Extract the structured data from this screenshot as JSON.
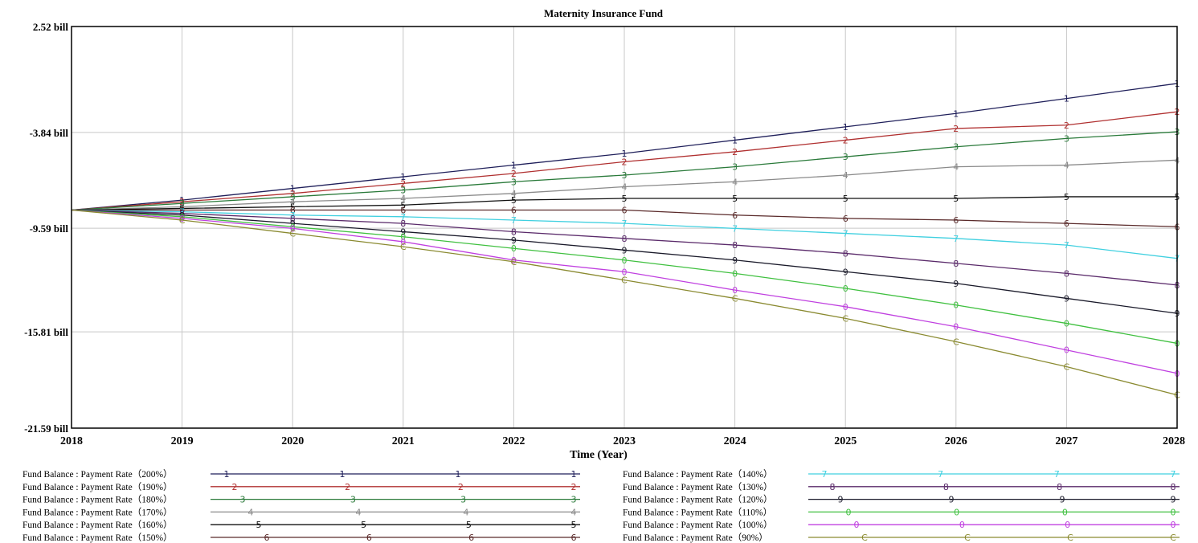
{
  "chart_data": {
    "type": "line",
    "title": "Maternity Insurance Fund",
    "xlabel": "Time (Year)",
    "ylabel": "",
    "x": [
      2018,
      2019,
      2020,
      2021,
      2022,
      2023,
      2024,
      2025,
      2026,
      2027,
      2028
    ],
    "x_tick_labels": [
      "2018",
      "2019",
      "2020",
      "2021",
      "2022",
      "2023",
      "2024",
      "2025",
      "2026",
      "2027",
      "2028"
    ],
    "ylim": [
      -21.59,
      2.52
    ],
    "y_unit": "bill",
    "y_tick_labels": [
      "2.52 bill",
      "-3.84 bill",
      "-9.59 bill",
      "-15.81 bill",
      "-21.59 bill"
    ],
    "y_tick_values": [
      2.52,
      -3.84,
      -9.59,
      -15.81,
      -21.59
    ],
    "grid": true,
    "legend_position": "bottom",
    "series": [
      {
        "name": "Fund Balance : Payment Rate（200%）",
        "marker": "1",
        "color": "#1f1f5a",
        "values": [
          -8.5,
          -7.9,
          -7.2,
          -6.5,
          -5.8,
          -5.1,
          -4.3,
          -3.5,
          -2.7,
          -1.8,
          -0.9
        ]
      },
      {
        "name": "Fund Balance : Payment Rate（190%）",
        "marker": "2",
        "color": "#b03030",
        "values": [
          -8.5,
          -8.0,
          -7.5,
          -6.9,
          -6.3,
          -5.6,
          -5.0,
          -4.3,
          -3.6,
          -3.4,
          -2.6
        ]
      },
      {
        "name": "Fund Balance : Payment Rate（180%）",
        "marker": "3",
        "color": "#2a7a3a",
        "values": [
          -8.5,
          -8.1,
          -7.7,
          -7.3,
          -6.8,
          -6.4,
          -5.9,
          -5.3,
          -4.7,
          -4.2,
          -3.8
        ]
      },
      {
        "name": "Fund Balance : Payment Rate（170%）",
        "marker": "4",
        "color": "#8a8a8a",
        "values": [
          -8.5,
          -8.3,
          -8.0,
          -7.8,
          -7.5,
          -7.1,
          -6.8,
          -6.4,
          -5.9,
          -5.8,
          -5.5
        ]
      },
      {
        "name": "Fund Balance : Payment Rate（160%）",
        "marker": "5",
        "color": "#111111",
        "values": [
          -8.5,
          -8.4,
          -8.3,
          -8.2,
          -7.9,
          -7.8,
          -7.8,
          -7.8,
          -7.8,
          -7.7,
          -7.7
        ]
      },
      {
        "name": "Fund Balance : Payment Rate（150%）",
        "marker": "6",
        "color": "#5a2a2a",
        "values": [
          -8.5,
          -8.5,
          -8.5,
          -8.5,
          -8.5,
          -8.5,
          -8.8,
          -9.0,
          -9.1,
          -9.3,
          -9.5
        ]
      },
      {
        "name": "Fund Balance : Payment Rate（140%）",
        "marker": "7",
        "color": "#40d0e0",
        "values": [
          -8.5,
          -8.6,
          -8.8,
          -8.9,
          -9.1,
          -9.3,
          -9.6,
          -9.9,
          -10.2,
          -10.6,
          -11.4
        ]
      },
      {
        "name": "Fund Balance : Payment Rate（130%）",
        "marker": "8",
        "color": "#5a2a6a",
        "values": [
          -8.5,
          -8.7,
          -9.0,
          -9.3,
          -9.8,
          -10.2,
          -10.6,
          -11.1,
          -11.7,
          -12.3,
          -13.0
        ]
      },
      {
        "name": "Fund Balance : Payment Rate（120%）",
        "marker": "9",
        "color": "#1a1a2a",
        "values": [
          -8.5,
          -8.8,
          -9.3,
          -9.8,
          -10.3,
          -10.9,
          -11.5,
          -12.2,
          -12.9,
          -13.8,
          -14.7
        ]
      },
      {
        "name": "Fund Balance : Payment Rate（110%）",
        "marker": "0",
        "color": "#40c040",
        "values": [
          -8.5,
          -8.9,
          -9.5,
          -10.1,
          -10.8,
          -11.5,
          -12.3,
          -13.2,
          -14.2,
          -15.3,
          -16.5
        ]
      },
      {
        "name": "Fund Balance : Payment Rate（100%）",
        "marker": "0",
        "color": "#c040e0",
        "values": [
          -8.5,
          -9.0,
          -9.6,
          -10.4,
          -11.5,
          -12.2,
          -13.3,
          -14.3,
          -15.5,
          -16.9,
          -18.3
        ]
      },
      {
        "name": "Fund Balance : Payment Rate（90%）",
        "marker": "C",
        "color": "#8a8a30",
        "values": [
          -8.5,
          -9.1,
          -9.9,
          -10.7,
          -11.6,
          -12.7,
          -13.8,
          -15.0,
          -16.4,
          -17.9,
          -19.6
        ]
      }
    ]
  }
}
